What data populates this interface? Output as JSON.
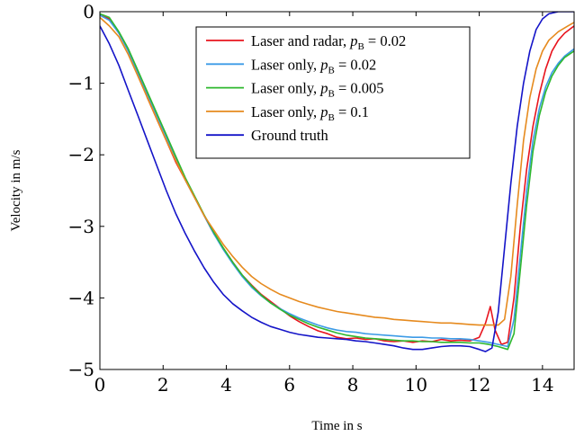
{
  "chart_data": {
    "type": "line",
    "title": "",
    "xlabel": "Time in s",
    "ylabel": "Velocity in m/s",
    "xlim": [
      0,
      15
    ],
    "ylim": [
      -5,
      0
    ],
    "xticks": [
      0,
      2,
      4,
      6,
      8,
      10,
      12,
      14
    ],
    "xtick_labels": [
      "0",
      "2",
      "4",
      "6",
      "8",
      "10",
      "12",
      "14"
    ],
    "yticks": [
      0,
      -1,
      -2,
      -3,
      -4,
      -5
    ],
    "ytick_labels": [
      "0",
      "−1",
      "−2",
      "−3",
      "−4",
      "−5"
    ],
    "grid": false,
    "legend_position": "top-right",
    "series": [
      {
        "name": "Laser and radar, p_B = 0.02",
        "legend_prefix": "Laser and radar, ",
        "legend_value": " = 0.02",
        "color": "#e8141e",
        "points": [
          [
            0.0,
            -0.05
          ],
          [
            0.3,
            -0.1
          ],
          [
            0.6,
            -0.3
          ],
          [
            0.9,
            -0.55
          ],
          [
            1.2,
            -0.85
          ],
          [
            1.5,
            -1.2
          ],
          [
            1.8,
            -1.5
          ],
          [
            2.1,
            -1.8
          ],
          [
            2.4,
            -2.1
          ],
          [
            2.7,
            -2.35
          ],
          [
            3.0,
            -2.6
          ],
          [
            3.3,
            -2.85
          ],
          [
            3.6,
            -3.1
          ],
          [
            3.9,
            -3.3
          ],
          [
            4.2,
            -3.5
          ],
          [
            4.5,
            -3.68
          ],
          [
            4.8,
            -3.82
          ],
          [
            5.1,
            -3.95
          ],
          [
            5.4,
            -4.05
          ],
          [
            5.7,
            -4.15
          ],
          [
            6.0,
            -4.25
          ],
          [
            6.3,
            -4.33
          ],
          [
            6.6,
            -4.4
          ],
          [
            6.9,
            -4.46
          ],
          [
            7.2,
            -4.5
          ],
          [
            7.5,
            -4.55
          ],
          [
            7.8,
            -4.57
          ],
          [
            8.1,
            -4.56
          ],
          [
            8.4,
            -4.58
          ],
          [
            8.7,
            -4.57
          ],
          [
            9.0,
            -4.6
          ],
          [
            9.3,
            -4.61
          ],
          [
            9.6,
            -4.6
          ],
          [
            9.9,
            -4.62
          ],
          [
            10.2,
            -4.6
          ],
          [
            10.5,
            -4.61
          ],
          [
            10.8,
            -4.58
          ],
          [
            11.1,
            -4.6
          ],
          [
            11.4,
            -4.59
          ],
          [
            11.7,
            -4.6
          ],
          [
            12.0,
            -4.55
          ],
          [
            12.2,
            -4.35
          ],
          [
            12.35,
            -4.12
          ],
          [
            12.5,
            -4.45
          ],
          [
            12.7,
            -4.65
          ],
          [
            12.9,
            -4.62
          ],
          [
            13.1,
            -4.0
          ],
          [
            13.3,
            -3.0
          ],
          [
            13.5,
            -2.2
          ],
          [
            13.7,
            -1.6
          ],
          [
            13.9,
            -1.15
          ],
          [
            14.1,
            -0.8
          ],
          [
            14.3,
            -0.55
          ],
          [
            14.5,
            -0.4
          ],
          [
            14.7,
            -0.3
          ],
          [
            15.0,
            -0.2
          ]
        ]
      },
      {
        "name": "Laser only, p_B = 0.02",
        "legend_prefix": "Laser only, ",
        "legend_value": " = 0.02",
        "color": "#3c9be6",
        "points": [
          [
            0.0,
            -0.05
          ],
          [
            0.3,
            -0.12
          ],
          [
            0.6,
            -0.3
          ],
          [
            0.9,
            -0.55
          ],
          [
            1.2,
            -0.85
          ],
          [
            1.5,
            -1.15
          ],
          [
            1.8,
            -1.45
          ],
          [
            2.1,
            -1.75
          ],
          [
            2.4,
            -2.05
          ],
          [
            2.7,
            -2.35
          ],
          [
            3.0,
            -2.6
          ],
          [
            3.3,
            -2.85
          ],
          [
            3.6,
            -3.1
          ],
          [
            3.9,
            -3.32
          ],
          [
            4.2,
            -3.52
          ],
          [
            4.5,
            -3.7
          ],
          [
            4.8,
            -3.85
          ],
          [
            5.1,
            -3.97
          ],
          [
            5.4,
            -4.07
          ],
          [
            5.7,
            -4.15
          ],
          [
            6.0,
            -4.22
          ],
          [
            6.3,
            -4.28
          ],
          [
            6.6,
            -4.33
          ],
          [
            6.9,
            -4.38
          ],
          [
            7.2,
            -4.42
          ],
          [
            7.5,
            -4.45
          ],
          [
            7.8,
            -4.47
          ],
          [
            8.1,
            -4.48
          ],
          [
            8.4,
            -4.5
          ],
          [
            8.7,
            -4.51
          ],
          [
            9.0,
            -4.52
          ],
          [
            9.3,
            -4.53
          ],
          [
            9.6,
            -4.54
          ],
          [
            9.9,
            -4.55
          ],
          [
            10.2,
            -4.55
          ],
          [
            10.5,
            -4.56
          ],
          [
            10.8,
            -4.56
          ],
          [
            11.1,
            -4.57
          ],
          [
            11.4,
            -4.57
          ],
          [
            11.7,
            -4.58
          ],
          [
            12.0,
            -4.6
          ],
          [
            12.3,
            -4.62
          ],
          [
            12.6,
            -4.65
          ],
          [
            12.9,
            -4.68
          ],
          [
            13.1,
            -4.3
          ],
          [
            13.3,
            -3.4
          ],
          [
            13.5,
            -2.5
          ],
          [
            13.7,
            -1.8
          ],
          [
            13.9,
            -1.35
          ],
          [
            14.1,
            -1.05
          ],
          [
            14.3,
            -0.85
          ],
          [
            14.5,
            -0.72
          ],
          [
            14.7,
            -0.62
          ],
          [
            15.0,
            -0.52
          ]
        ]
      },
      {
        "name": "Laser only, p_B = 0.005",
        "legend_prefix": "Laser only, ",
        "legend_value": " = 0.005",
        "color": "#2eb82e",
        "points": [
          [
            0.0,
            -0.03
          ],
          [
            0.3,
            -0.08
          ],
          [
            0.6,
            -0.28
          ],
          [
            0.9,
            -0.52
          ],
          [
            1.2,
            -0.82
          ],
          [
            1.5,
            -1.12
          ],
          [
            1.8,
            -1.42
          ],
          [
            2.1,
            -1.72
          ],
          [
            2.4,
            -2.02
          ],
          [
            2.7,
            -2.32
          ],
          [
            3.0,
            -2.58
          ],
          [
            3.3,
            -2.84
          ],
          [
            3.6,
            -3.08
          ],
          [
            3.9,
            -3.3
          ],
          [
            4.2,
            -3.5
          ],
          [
            4.5,
            -3.68
          ],
          [
            4.8,
            -3.83
          ],
          [
            5.1,
            -3.96
          ],
          [
            5.4,
            -4.07
          ],
          [
            5.7,
            -4.16
          ],
          [
            6.0,
            -4.24
          ],
          [
            6.3,
            -4.3
          ],
          [
            6.6,
            -4.36
          ],
          [
            6.9,
            -4.41
          ],
          [
            7.2,
            -4.45
          ],
          [
            7.5,
            -4.49
          ],
          [
            7.8,
            -4.52
          ],
          [
            8.1,
            -4.54
          ],
          [
            8.4,
            -4.56
          ],
          [
            8.7,
            -4.57
          ],
          [
            9.0,
            -4.58
          ],
          [
            9.3,
            -4.59
          ],
          [
            9.6,
            -4.6
          ],
          [
            9.9,
            -4.6
          ],
          [
            10.2,
            -4.61
          ],
          [
            10.5,
            -4.61
          ],
          [
            10.8,
            -4.62
          ],
          [
            11.1,
            -4.62
          ],
          [
            11.4,
            -4.62
          ],
          [
            11.7,
            -4.63
          ],
          [
            12.0,
            -4.63
          ],
          [
            12.3,
            -4.65
          ],
          [
            12.6,
            -4.68
          ],
          [
            12.9,
            -4.72
          ],
          [
            13.1,
            -4.5
          ],
          [
            13.3,
            -3.6
          ],
          [
            13.5,
            -2.7
          ],
          [
            13.7,
            -1.95
          ],
          [
            13.9,
            -1.45
          ],
          [
            14.1,
            -1.12
          ],
          [
            14.3,
            -0.9
          ],
          [
            14.5,
            -0.75
          ],
          [
            14.7,
            -0.64
          ],
          [
            15.0,
            -0.55
          ]
        ]
      },
      {
        "name": "Laser only, p_B = 0.1",
        "legend_prefix": "Laser only, ",
        "legend_value": " = 0.1",
        "color": "#e68a1e",
        "points": [
          [
            0.0,
            -0.08
          ],
          [
            0.3,
            -0.2
          ],
          [
            0.6,
            -0.35
          ],
          [
            0.9,
            -0.6
          ],
          [
            1.2,
            -0.9
          ],
          [
            1.5,
            -1.2
          ],
          [
            1.8,
            -1.5
          ],
          [
            2.1,
            -1.8
          ],
          [
            2.4,
            -2.08
          ],
          [
            2.7,
            -2.35
          ],
          [
            3.0,
            -2.6
          ],
          [
            3.3,
            -2.85
          ],
          [
            3.6,
            -3.05
          ],
          [
            3.9,
            -3.25
          ],
          [
            4.2,
            -3.42
          ],
          [
            4.5,
            -3.57
          ],
          [
            4.8,
            -3.7
          ],
          [
            5.1,
            -3.8
          ],
          [
            5.4,
            -3.88
          ],
          [
            5.7,
            -3.95
          ],
          [
            6.0,
            -4.0
          ],
          [
            6.3,
            -4.05
          ],
          [
            6.6,
            -4.09
          ],
          [
            6.9,
            -4.13
          ],
          [
            7.2,
            -4.16
          ],
          [
            7.5,
            -4.19
          ],
          [
            7.8,
            -4.21
          ],
          [
            8.1,
            -4.23
          ],
          [
            8.4,
            -4.25
          ],
          [
            8.7,
            -4.27
          ],
          [
            9.0,
            -4.28
          ],
          [
            9.3,
            -4.3
          ],
          [
            9.6,
            -4.31
          ],
          [
            9.9,
            -4.32
          ],
          [
            10.2,
            -4.33
          ],
          [
            10.5,
            -4.34
          ],
          [
            10.8,
            -4.35
          ],
          [
            11.1,
            -4.35
          ],
          [
            11.4,
            -4.36
          ],
          [
            11.7,
            -4.37
          ],
          [
            12.0,
            -4.38
          ],
          [
            12.3,
            -4.38
          ],
          [
            12.6,
            -4.38
          ],
          [
            12.8,
            -4.3
          ],
          [
            13.0,
            -3.7
          ],
          [
            13.2,
            -2.7
          ],
          [
            13.4,
            -1.8
          ],
          [
            13.6,
            -1.2
          ],
          [
            13.8,
            -0.8
          ],
          [
            14.0,
            -0.55
          ],
          [
            14.2,
            -0.4
          ],
          [
            14.5,
            -0.28
          ],
          [
            14.8,
            -0.2
          ],
          [
            15.0,
            -0.15
          ]
        ]
      },
      {
        "name": "Ground truth",
        "legend_prefix": "Ground truth",
        "legend_value": "",
        "color": "#1414c8",
        "points": [
          [
            0.0,
            -0.2
          ],
          [
            0.3,
            -0.45
          ],
          [
            0.6,
            -0.75
          ],
          [
            0.9,
            -1.1
          ],
          [
            1.2,
            -1.45
          ],
          [
            1.5,
            -1.8
          ],
          [
            1.8,
            -2.15
          ],
          [
            2.1,
            -2.5
          ],
          [
            2.4,
            -2.82
          ],
          [
            2.7,
            -3.1
          ],
          [
            3.0,
            -3.35
          ],
          [
            3.3,
            -3.58
          ],
          [
            3.6,
            -3.78
          ],
          [
            3.9,
            -3.95
          ],
          [
            4.2,
            -4.08
          ],
          [
            4.5,
            -4.18
          ],
          [
            4.8,
            -4.27
          ],
          [
            5.1,
            -4.34
          ],
          [
            5.4,
            -4.4
          ],
          [
            5.7,
            -4.44
          ],
          [
            6.0,
            -4.48
          ],
          [
            6.3,
            -4.51
          ],
          [
            6.6,
            -4.53
          ],
          [
            6.9,
            -4.55
          ],
          [
            7.2,
            -4.56
          ],
          [
            7.5,
            -4.57
          ],
          [
            7.8,
            -4.58
          ],
          [
            8.1,
            -4.6
          ],
          [
            8.4,
            -4.61
          ],
          [
            8.7,
            -4.63
          ],
          [
            9.0,
            -4.65
          ],
          [
            9.3,
            -4.67
          ],
          [
            9.6,
            -4.7
          ],
          [
            9.9,
            -4.72
          ],
          [
            10.2,
            -4.72
          ],
          [
            10.5,
            -4.7
          ],
          [
            10.8,
            -4.68
          ],
          [
            11.1,
            -4.67
          ],
          [
            11.4,
            -4.67
          ],
          [
            11.7,
            -4.68
          ],
          [
            12.0,
            -4.72
          ],
          [
            12.2,
            -4.75
          ],
          [
            12.4,
            -4.7
          ],
          [
            12.6,
            -4.2
          ],
          [
            12.8,
            -3.3
          ],
          [
            13.0,
            -2.4
          ],
          [
            13.2,
            -1.6
          ],
          [
            13.4,
            -1.0
          ],
          [
            13.6,
            -0.55
          ],
          [
            13.8,
            -0.25
          ],
          [
            14.0,
            -0.1
          ],
          [
            14.2,
            -0.03
          ],
          [
            14.5,
            0.0
          ],
          [
            15.0,
            0.0
          ]
        ]
      }
    ]
  }
}
